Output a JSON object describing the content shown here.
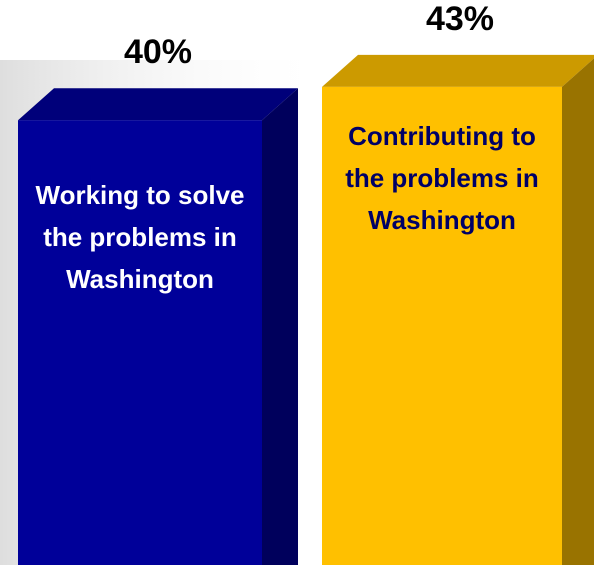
{
  "chart_data": {
    "type": "bar3d",
    "categories": [
      "Working to solve the problems in Washington",
      "Contributing to the problems in Washington"
    ],
    "values": [
      40,
      43
    ],
    "value_labels": [
      "40%",
      "43%"
    ],
    "colors": [
      "#000099",
      "#ffc000"
    ]
  }
}
